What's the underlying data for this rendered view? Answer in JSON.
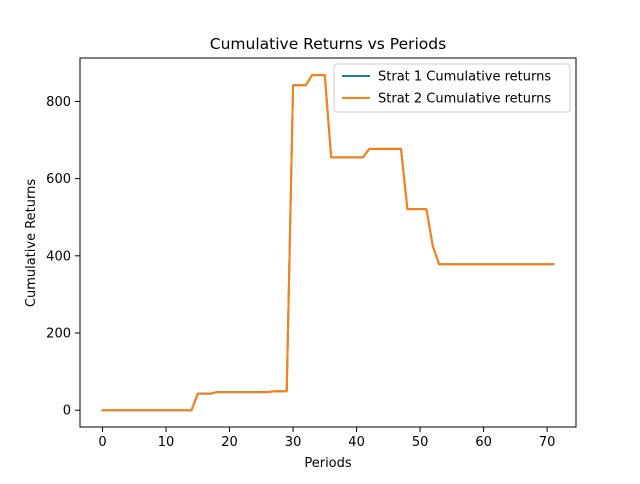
{
  "chart_data": {
    "type": "line",
    "title": "Cumulative Returns vs Periods",
    "xlabel": "Periods",
    "ylabel": "Cumulative Returns",
    "xlim": [
      -3.55,
      74.55
    ],
    "ylim": [
      -43.5,
      912.5
    ],
    "xticks": [
      0,
      10,
      20,
      30,
      40,
      50,
      60,
      70
    ],
    "yticks": [
      0,
      200,
      400,
      600,
      800
    ],
    "grid": false,
    "legend_position": "upper-right",
    "series": [
      {
        "name": "Strat 1 Cumulative returns",
        "color": "#1f77b4",
        "x": [
          0,
          14,
          15,
          17,
          18,
          26,
          27,
          29,
          30,
          32,
          33,
          35,
          36,
          41,
          42,
          47,
          48,
          51,
          52,
          53,
          71
        ],
        "y": [
          0,
          0,
          43,
          43,
          47,
          47,
          49,
          49,
          842,
          842,
          868,
          868,
          655,
          655,
          677,
          677,
          521,
          521,
          425,
          378,
          378
        ]
      },
      {
        "name": "Strat 2 Cumulative returns",
        "color": "#ff7f0e",
        "x": [
          0,
          14,
          15,
          17,
          18,
          26,
          27,
          29,
          30,
          32,
          33,
          35,
          36,
          41,
          42,
          47,
          48,
          51,
          52,
          53,
          71
        ],
        "y": [
          0,
          0,
          43,
          43,
          47,
          47,
          49,
          49,
          842,
          842,
          868,
          868,
          655,
          655,
          677,
          677,
          521,
          521,
          425,
          378,
          378
        ]
      }
    ]
  }
}
